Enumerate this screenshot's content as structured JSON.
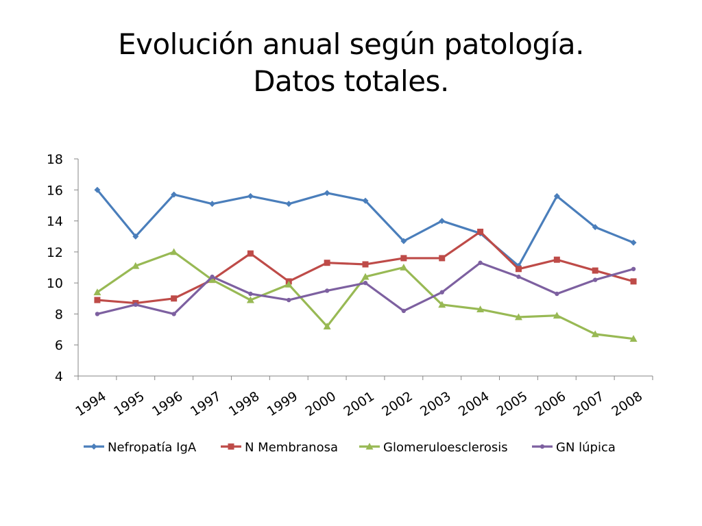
{
  "slide": {
    "title_line1": "Evolución anual según patología.",
    "title_line2": "Datos totales."
  },
  "chart_data": {
    "type": "line",
    "title": "Evolución anual según patología. Datos totales.",
    "xlabel": "",
    "ylabel": "",
    "ylim": [
      4,
      18
    ],
    "yticks": [
      4,
      6,
      8,
      10,
      12,
      14,
      16,
      18
    ],
    "grid": false,
    "legend_position": "bottom",
    "categories": [
      "1994",
      "1995",
      "1996",
      "1997",
      "1998",
      "1999",
      "2000",
      "2001",
      "2002",
      "2003",
      "2004",
      "2005",
      "2006",
      "2007",
      "2008"
    ],
    "series": [
      {
        "name": "Nefropatía IgA",
        "color": "#4a7ebb",
        "marker": "diamond",
        "values": [
          16.0,
          13.0,
          15.7,
          15.1,
          15.6,
          15.1,
          15.8,
          15.3,
          12.7,
          14.0,
          13.2,
          11.1,
          15.6,
          13.6,
          12.6
        ]
      },
      {
        "name": "N Membranosa",
        "color": "#be4b48",
        "marker": "square",
        "values": [
          8.9,
          8.7,
          9.0,
          10.2,
          11.9,
          10.1,
          11.3,
          11.2,
          11.6,
          11.6,
          13.3,
          10.9,
          11.5,
          10.8,
          10.1
        ]
      },
      {
        "name": "Glomeruloesclerosis",
        "color": "#98b954",
        "marker": "triangle",
        "values": [
          9.4,
          11.1,
          12.0,
          10.2,
          8.9,
          9.9,
          7.2,
          10.4,
          11.0,
          8.6,
          8.3,
          7.8,
          7.9,
          6.7,
          6.4
        ]
      },
      {
        "name": "GN lúpica",
        "color": "#7d60a0",
        "marker": "circle",
        "values": [
          8.0,
          8.6,
          8.0,
          10.4,
          9.3,
          8.9,
          9.5,
          10.0,
          8.2,
          9.4,
          11.3,
          10.4,
          9.3,
          10.2,
          10.9
        ]
      }
    ]
  }
}
